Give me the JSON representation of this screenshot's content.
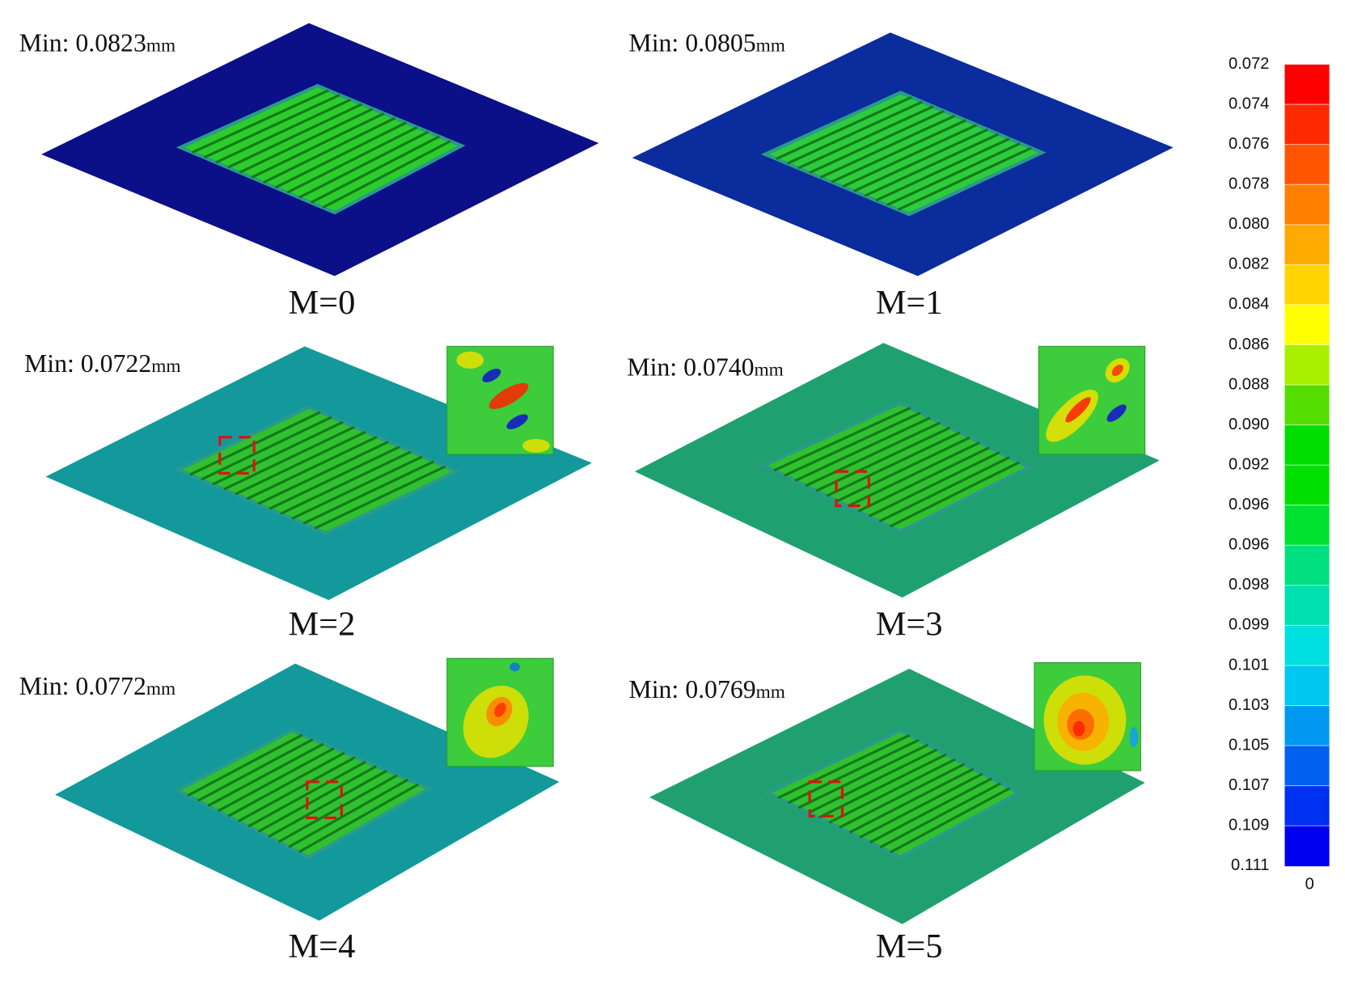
{
  "panels": [
    {
      "min": "Min: 0.0823",
      "unit": "mm",
      "label": "M=0"
    },
    {
      "min": "Min: 0.0805",
      "unit": "mm",
      "label": "M=1"
    },
    {
      "min": "Min: 0.0722",
      "unit": "mm",
      "label": "M=2"
    },
    {
      "min": "Min: 0.0740",
      "unit": "mm",
      "label": "M=3"
    },
    {
      "min": "Min: 0.0772",
      "unit": "mm",
      "label": "M=4"
    },
    {
      "min": "Min: 0.0769",
      "unit": "mm",
      "label": "M=5"
    }
  ],
  "colorbar": {
    "labels": [
      "0.072",
      "0.074",
      "0.076",
      "0.078",
      "0.080",
      "0.082",
      "0.084",
      "0.086",
      "0.088",
      "0.090",
      "0.092",
      "0.096",
      "0.096",
      "0.098",
      "0.099",
      "0.101",
      "0.103",
      "0.105",
      "0.107",
      "0.109",
      "0.111"
    ],
    "zero": "0",
    "colors": [
      "#ff0000",
      "#ff2a00",
      "#ff5500",
      "#ff8000",
      "#ffaa00",
      "#ffd400",
      "#ffff00",
      "#aaee00",
      "#55dd00",
      "#00dd00",
      "#00e000",
      "#00e030",
      "#00e080",
      "#00e0b0",
      "#00e0e0",
      "#00c8f0",
      "#0098f0",
      "#0060f0",
      "#0030f0",
      "#0000f0"
    ]
  }
}
